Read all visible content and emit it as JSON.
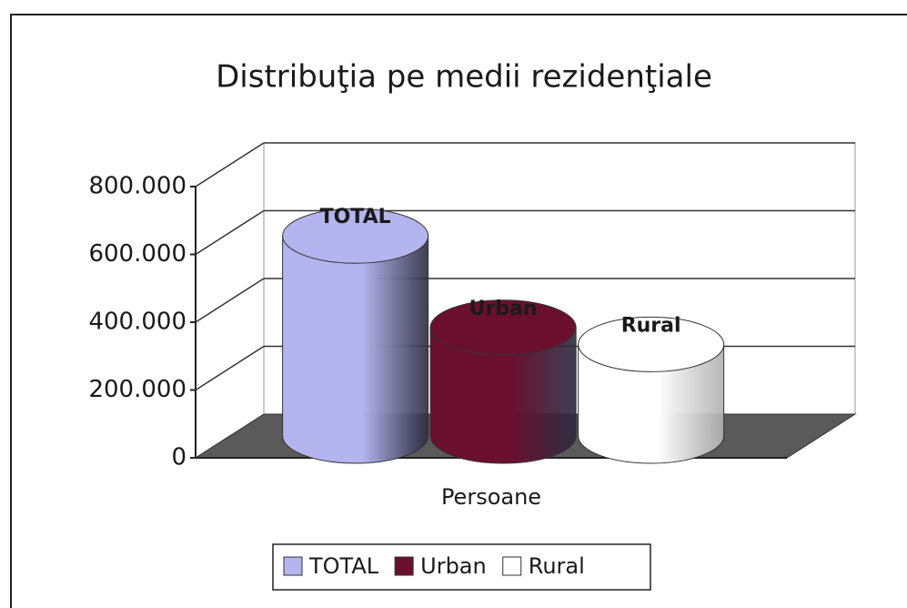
{
  "chart_data": {
    "type": "bar3d",
    "title": "Distribuţia pe medii rezidenţiale",
    "categories": [
      "Persoane"
    ],
    "series": [
      {
        "name": "TOTAL",
        "color": "#b4b4ee",
        "values": [
          590000
        ]
      },
      {
        "name": "Urban",
        "color": "#6a0f2e",
        "values": [
          320000
        ]
      },
      {
        "name": "Rural",
        "color": "#ffffff",
        "values": [
          270000
        ]
      }
    ],
    "ylim": [
      0,
      800000
    ],
    "yticks": [
      0,
      {
        "value": 200000,
        "label": "200.000"
      },
      {
        "value": 400000,
        "label": "400.000"
      },
      {
        "value": 600000,
        "label": "600.000"
      },
      {
        "value": 800000,
        "label": "800.000"
      }
    ],
    "grid": true,
    "legend": "bottom"
  }
}
